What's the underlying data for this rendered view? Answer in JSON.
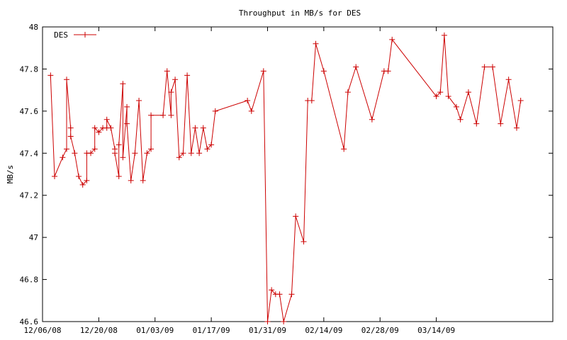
{
  "chart_data": {
    "type": "line",
    "title": "Throughput in MB/s for DES",
    "xlabel": "",
    "ylabel": "MB/s",
    "x_axis": "date",
    "xlim": [
      "2008-12-06",
      "2009-04-12"
    ],
    "ylim": [
      46.6,
      48
    ],
    "grid": false,
    "legend_position": "top-left",
    "x_tick_labels": [
      "12/06/08",
      "12/20/08",
      "01/03/09",
      "01/17/09",
      "01/31/09",
      "02/14/09",
      "02/28/09",
      "03/14/09"
    ],
    "x_tick_dates": [
      "2008-12-06",
      "2008-12-20",
      "2009-01-03",
      "2009-01-17",
      "2009-01-31",
      "2009-02-14",
      "2009-02-28",
      "2009-03-14"
    ],
    "y_tick_labels": [
      "46.6",
      "46.8",
      "47",
      "47.2",
      "47.4",
      "47.6",
      "47.8",
      "48"
    ],
    "y_ticks": [
      46.6,
      46.8,
      47.0,
      47.2,
      47.4,
      47.6,
      47.8,
      48.0
    ],
    "series": [
      {
        "name": "DES",
        "color": "#cc0000",
        "marker": "plus",
        "x": [
          "2008-12-08",
          "2008-12-09",
          "2008-12-11",
          "2008-12-12",
          "2008-12-12",
          "2008-12-13",
          "2008-12-13",
          "2008-12-14",
          "2008-12-15",
          "2008-12-16",
          "2008-12-17",
          "2008-12-17",
          "2008-12-18",
          "2008-12-19",
          "2008-12-19",
          "2008-12-20",
          "2008-12-21",
          "2008-12-22",
          "2008-12-22",
          "2008-12-23",
          "2008-12-24",
          "2008-12-24",
          "2008-12-25",
          "2008-12-25",
          "2008-12-26",
          "2008-12-26",
          "2008-12-27",
          "2008-12-27",
          "2008-12-28",
          "2008-12-29",
          "2008-12-30",
          "2008-12-31",
          "2009-01-01",
          "2009-01-02",
          "2009-01-02",
          "2009-01-05",
          "2009-01-06",
          "2009-01-07",
          "2009-01-07",
          "2009-01-08",
          "2009-01-09",
          "2009-01-10",
          "2009-01-11",
          "2009-01-12",
          "2009-01-13",
          "2009-01-14",
          "2009-01-15",
          "2009-01-16",
          "2009-01-17",
          "2009-01-18",
          "2009-01-26",
          "2009-01-27",
          "2009-01-30",
          "2009-01-31",
          "2009-02-01",
          "2009-02-02",
          "2009-02-03",
          "2009-02-04",
          "2009-02-06",
          "2009-02-07",
          "2009-02-09",
          "2009-02-10",
          "2009-02-11",
          "2009-02-12",
          "2009-02-14",
          "2009-02-19",
          "2009-02-20",
          "2009-02-22",
          "2009-02-26",
          "2009-03-01",
          "2009-03-02",
          "2009-03-03",
          "2009-03-14",
          "2009-03-15",
          "2009-03-16",
          "2009-03-17",
          "2009-03-19",
          "2009-03-20",
          "2009-03-22",
          "2009-03-24",
          "2009-03-26",
          "2009-03-28",
          "2009-03-30",
          "2009-04-01",
          "2009-04-03",
          "2009-04-04"
        ],
        "values": [
          47.77,
          47.29,
          47.38,
          47.42,
          47.75,
          47.52,
          47.48,
          47.4,
          47.29,
          47.25,
          47.27,
          47.4,
          47.4,
          47.42,
          47.52,
          47.5,
          47.52,
          47.52,
          47.56,
          47.52,
          47.42,
          47.4,
          47.29,
          47.44,
          47.73,
          47.38,
          47.62,
          47.54,
          47.27,
          47.4,
          47.65,
          47.27,
          47.4,
          47.42,
          47.58,
          47.58,
          47.79,
          47.58,
          47.69,
          47.75,
          47.38,
          47.4,
          47.77,
          47.4,
          47.52,
          47.4,
          47.52,
          47.42,
          47.44,
          47.6,
          47.65,
          47.6,
          47.79,
          46.6,
          46.75,
          46.73,
          46.73,
          46.6,
          46.73,
          47.1,
          46.98,
          47.65,
          47.65,
          47.92,
          47.79,
          47.42,
          47.69,
          47.81,
          47.56,
          47.79,
          47.79,
          47.94,
          47.67,
          47.69,
          47.96,
          47.67,
          47.62,
          47.56,
          47.69,
          47.54,
          47.81,
          47.81,
          47.54,
          47.75,
          47.52,
          47.65
        ]
      }
    ]
  }
}
